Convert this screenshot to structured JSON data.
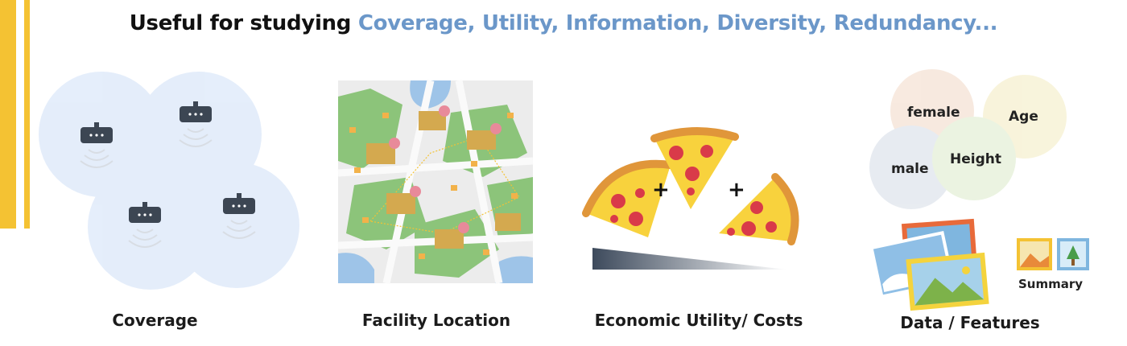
{
  "headline": {
    "prefix": "Useful for studying ",
    "highlight": "Coverage, Utility, Information, Diversity, Redundancy..."
  },
  "panels": [
    {
      "id": "coverage",
      "label": "Coverage",
      "icon": "wifi-router-icon"
    },
    {
      "id": "facility",
      "label": "Facility Location",
      "icon": "city-map-icon"
    },
    {
      "id": "economic",
      "label": "Economic Utility/ Costs",
      "icon": "pizza-slice-icon"
    },
    {
      "id": "data",
      "label": "Data / Features",
      "icon": "photo-stack-icon"
    }
  ],
  "venn": {
    "female": "female",
    "age": "Age",
    "male": "male",
    "height": "Height"
  },
  "summary_label": "Summary",
  "colors": {
    "accent_yellow": "#f4c233",
    "highlight_blue": "#6b97c9",
    "coverage_circle": "#cfe0f7",
    "map_road": "#ececec",
    "map_park": "#8cc47a",
    "map_water": "#9ec4e8"
  }
}
